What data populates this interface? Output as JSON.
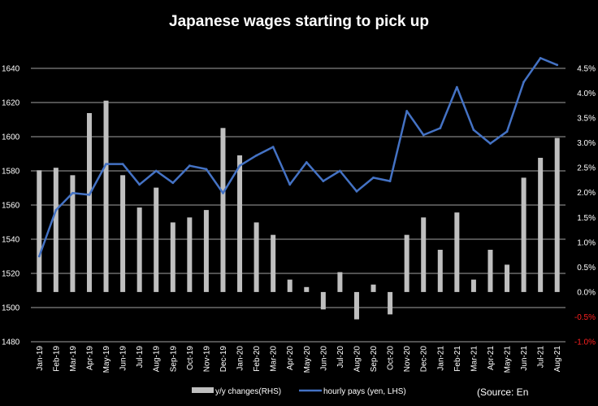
{
  "chart_data": {
    "type": "bar+line",
    "title": "Japanese wages starting to pick up",
    "categories": [
      "Jan-19",
      "Feb-19",
      "Mar-19",
      "Apr-19",
      "May-19",
      "Jun-19",
      "Jul-19",
      "Aug-19",
      "Sep-19",
      "Oct-19",
      "Nov-19",
      "Dec-19",
      "Jan-20",
      "Feb-20",
      "Mar-20",
      "Apr-20",
      "May-20",
      "Jun-20",
      "Jul-20",
      "Aug-20",
      "Sep-20",
      "Oct-20",
      "Nov-20",
      "Dec-20",
      "Jan-21",
      "Feb-21",
      "Mar-21",
      "Apr-21",
      "May-21",
      "Jun-21",
      "Jul-21",
      "Aug-21"
    ],
    "series": [
      {
        "name": "y/y changes(RHS)",
        "type": "bar",
        "axis": "right",
        "color": "#bfbfbf",
        "values": [
          2.45,
          2.5,
          2.35,
          3.6,
          3.85,
          2.35,
          1.7,
          2.1,
          1.4,
          1.5,
          1.65,
          3.3,
          2.75,
          1.4,
          1.15,
          0.25,
          0.1,
          -0.35,
          0.4,
          -0.55,
          0.15,
          -0.45,
          1.15,
          1.5,
          0.85,
          1.6,
          0.25,
          0.85,
          0.55,
          2.3,
          2.7,
          3.1
        ]
      },
      {
        "name": "hourly pays (yen, LHS)",
        "type": "line",
        "axis": "left",
        "color": "#4472c4",
        "values": [
          1530,
          1557,
          1567,
          1566,
          1584,
          1584,
          1572,
          1580,
          1573,
          1583,
          1581,
          1567,
          1583,
          1589,
          1594,
          1572,
          1585,
          1574,
          1580,
          1568,
          1576,
          1574,
          1615,
          1601,
          1605,
          1629,
          1604,
          1596,
          1603,
          1632,
          1646,
          1642
        ]
      }
    ],
    "y_left": {
      "lim": [
        1480,
        1640
      ],
      "ticks": [
        1480,
        1500,
        1520,
        1540,
        1560,
        1580,
        1600,
        1620,
        1640
      ]
    },
    "y_right": {
      "lim": [
        -1.0,
        4.5
      ],
      "ticks": [
        "-1.0%",
        "-0.5%",
        "0.0%",
        "0.5%",
        "1.0%",
        "1.5%",
        "2.0%",
        "2.5%",
        "3.0%",
        "3.5%",
        "4.0%",
        "4.5%"
      ],
      "negative_color": "#ff2020"
    },
    "grid": true,
    "legend_position": "bottom",
    "source_note": "(Source: En"
  }
}
